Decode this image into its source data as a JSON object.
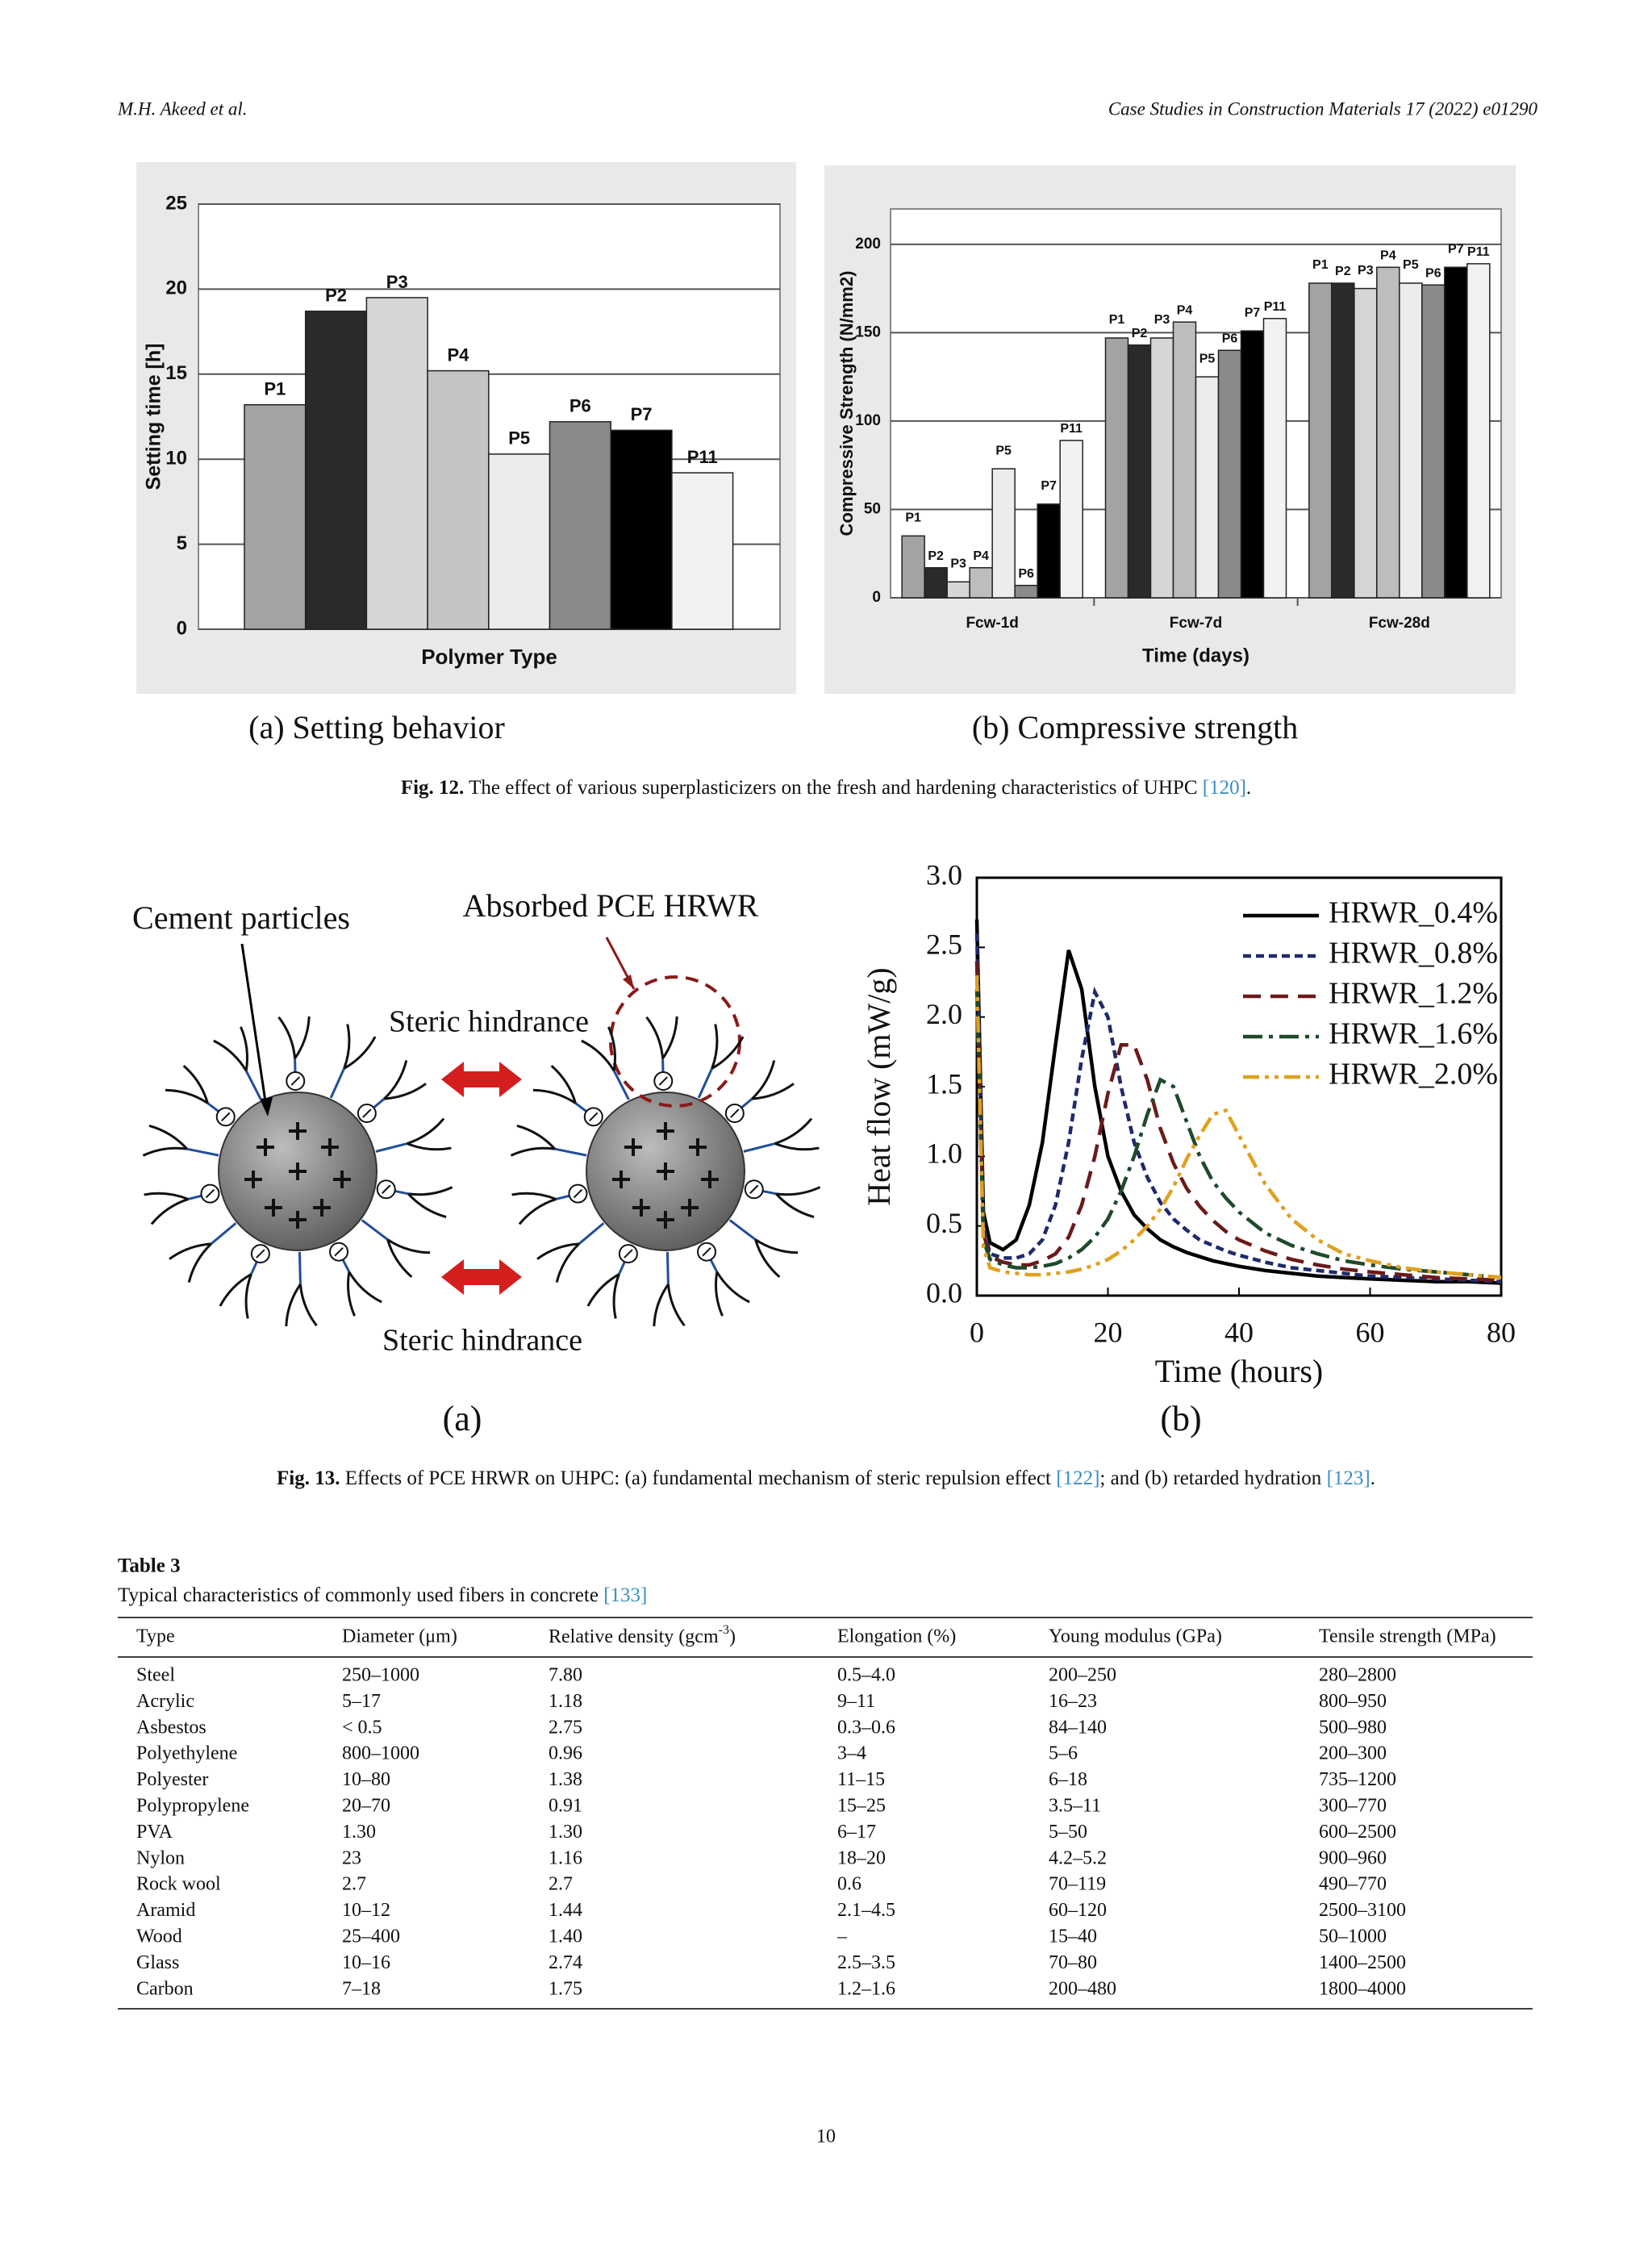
{
  "header": {
    "authors": "M.H. Akeed et al.",
    "journal": "Case Studies in Construction Materials 17 (2022) e01290"
  },
  "figure_12": {
    "panel_labels": [
      "(a) Setting behavior",
      "(b) Compressive strength"
    ],
    "caption": {
      "label": "Fig. 12.",
      "text": "The effect of various superplasticizers on the fresh and hardening characteristics of UHPC",
      "ref": "[120]",
      "tail": "."
    }
  },
  "figure_13": {
    "panel_labels": [
      "(a)",
      "(b)"
    ],
    "diagram": {
      "cement": "Cement particles",
      "pce": "Absorbed PCE HRWR",
      "steric_top": "Steric hindrance",
      "steric_bottom": "Steric hindrance"
    },
    "caption": {
      "label": "Fig. 13.",
      "text": "Effects of PCE HRWR on UHPC: (a) fundamental mechanism of steric repulsion effect",
      "ref": "[122]",
      "middle": "; and (b) retarded hydration",
      "ref2": "[123]",
      "tail": "."
    }
  },
  "chart_data": [
    {
      "type": "bar",
      "categories": [
        "P1",
        "P2",
        "P3",
        "P4",
        "P5",
        "P6",
        "P7",
        "P11"
      ],
      "values": [
        13.2,
        18.7,
        19.5,
        15.2,
        10.3,
        12.2,
        11.7,
        9.2
      ],
      "colors": [
        "#a3a3a3",
        "#2a2a2a",
        "#d6d6d6",
        "#c4c4c4",
        "#ececec",
        "#8a8a8a",
        "#000000",
        "#f2f2f2"
      ],
      "ylim": [
        0,
        25
      ],
      "yticks": [
        0,
        5,
        10,
        15,
        20,
        25
      ],
      "grid": true,
      "ylabel": "Setting time [h]",
      "xlabel": "Polymer Type"
    },
    {
      "type": "grouped_bar",
      "categories": [
        "Fcw-1d",
        "Fcw-7d",
        "Fcw-28d"
      ],
      "series": [
        {
          "name": "P1",
          "color": "#a3a3a3",
          "values": [
            35,
            147,
            178
          ]
        },
        {
          "name": "P2",
          "color": "#2a2a2a",
          "values": [
            17,
            143,
            178
          ]
        },
        {
          "name": "P3",
          "color": "#d6d6d6",
          "values": [
            9,
            147,
            175
          ]
        },
        {
          "name": "P4",
          "color": "#bdbdbd",
          "values": [
            17,
            156,
            187
          ]
        },
        {
          "name": "P5",
          "color": "#ececec",
          "values": [
            73,
            125,
            178
          ]
        },
        {
          "name": "P6",
          "color": "#8a8a8a",
          "values": [
            7,
            140,
            177
          ]
        },
        {
          "name": "P7",
          "color": "#000000",
          "values": [
            53,
            151,
            187
          ]
        },
        {
          "name": "P11",
          "color": "#f2f2f2",
          "values": [
            89,
            158,
            189
          ]
        }
      ],
      "ylim": [
        0,
        220
      ],
      "yticks": [
        0,
        50,
        100,
        150,
        200
      ],
      "grid": true,
      "ylabel": "Compressive Strength (N/mm2)",
      "xlabel": "Time (days)"
    },
    {
      "type": "line",
      "x": [
        0,
        1,
        2,
        4,
        6,
        8,
        10,
        12,
        14,
        16,
        18,
        20,
        22,
        24,
        26,
        28,
        30,
        32,
        34,
        36,
        38,
        40,
        44,
        48,
        52,
        56,
        60,
        65,
        70,
        75,
        80
      ],
      "series": [
        {
          "name": "HRWR_0.4%",
          "color": "#000000",
          "dash": "solid",
          "values": [
            2.7,
            0.6,
            0.38,
            0.33,
            0.4,
            0.65,
            1.1,
            1.8,
            2.48,
            2.2,
            1.5,
            1.0,
            0.75,
            0.58,
            0.48,
            0.4,
            0.35,
            0.31,
            0.28,
            0.25,
            0.23,
            0.21,
            0.18,
            0.16,
            0.14,
            0.13,
            0.12,
            0.11,
            0.1,
            0.1,
            0.09
          ]
        },
        {
          "name": "HRWR_0.8%",
          "color": "#1f2a6b",
          "dash": "short-dash",
          "values": [
            2.6,
            0.5,
            0.3,
            0.27,
            0.27,
            0.3,
            0.4,
            0.65,
            1.1,
            1.7,
            2.18,
            2.0,
            1.5,
            1.1,
            0.85,
            0.67,
            0.55,
            0.47,
            0.4,
            0.36,
            0.32,
            0.29,
            0.24,
            0.2,
            0.18,
            0.16,
            0.14,
            0.13,
            0.12,
            0.11,
            0.1
          ]
        },
        {
          "name": "HRWR_1.2%",
          "color": "#6b1a1a",
          "dash": "dash",
          "values": [
            2.4,
            0.45,
            0.28,
            0.24,
            0.22,
            0.22,
            0.25,
            0.3,
            0.42,
            0.65,
            1.0,
            1.45,
            1.8,
            1.8,
            1.55,
            1.2,
            0.95,
            0.77,
            0.64,
            0.54,
            0.46,
            0.4,
            0.32,
            0.26,
            0.22,
            0.19,
            0.17,
            0.15,
            0.13,
            0.12,
            0.11
          ]
        },
        {
          "name": "HRWR_1.6%",
          "color": "#1e4a2a",
          "dash": "dash-dot",
          "values": [
            2.2,
            0.4,
            0.26,
            0.22,
            0.2,
            0.2,
            0.21,
            0.23,
            0.27,
            0.33,
            0.42,
            0.55,
            0.75,
            1.0,
            1.3,
            1.55,
            1.5,
            1.25,
            1.0,
            0.82,
            0.7,
            0.6,
            0.45,
            0.36,
            0.3,
            0.25,
            0.22,
            0.19,
            0.17,
            0.15,
            0.13
          ]
        },
        {
          "name": "HRWR_2.0%",
          "color": "#e0a020",
          "dash": "dash-dot-dot",
          "values": [
            2.3,
            0.35,
            0.2,
            0.17,
            0.16,
            0.15,
            0.15,
            0.16,
            0.17,
            0.19,
            0.22,
            0.26,
            0.32,
            0.4,
            0.5,
            0.62,
            0.78,
            0.98,
            1.15,
            1.3,
            1.33,
            1.15,
            0.8,
            0.55,
            0.4,
            0.3,
            0.25,
            0.2,
            0.17,
            0.15,
            0.13
          ]
        }
      ],
      "xlim": [
        0,
        80
      ],
      "xticks": [
        0,
        20,
        40,
        60,
        80
      ],
      "ylim": [
        0,
        3
      ],
      "yticks": [
        {
          "value": 0,
          "label": "0.0"
        },
        0.5,
        {
          "value": 1,
          "label": "1.0"
        },
        1.5,
        {
          "value": 2,
          "label": "2.0"
        },
        2.5,
        {
          "value": 3,
          "label": "3.0"
        }
      ],
      "xlabel": "Time (hours)",
      "ylabel": "Heat flow (mW/g)",
      "legend": "upper right"
    }
  ],
  "table": {
    "title": "Table 3",
    "caption": "Typical characteristics of commonly used fibers in concrete",
    "ref": "[133]",
    "columns": [
      "Type",
      "Diameter (μm)",
      {
        "text": "Relative density (gcm",
        "sup": "-3",
        "close": ")"
      },
      "Elongation (%)",
      "Young modulus (GPa)",
      "Tensile strength (MPa)"
    ],
    "rows": [
      [
        "Steel",
        "250–1000",
        "7.80",
        "0.5–4.0",
        "200–250",
        "280–2800"
      ],
      [
        "Acrylic",
        "5–17",
        "1.18",
        "9–11",
        "16–23",
        "800–950"
      ],
      [
        "Asbestos",
        "< 0.5",
        "2.75",
        "0.3–0.6",
        "84–140",
        "500–980"
      ],
      [
        "Polyethylene",
        "800–1000",
        "0.96",
        "3–4",
        "5–6",
        "200–300"
      ],
      [
        "Polyester",
        "10–80",
        "1.38",
        "11–15",
        "6–18",
        "735–1200"
      ],
      [
        "Polypropylene",
        "20–70",
        "0.91",
        "15–25",
        "3.5–11",
        "300–770"
      ],
      [
        "PVA",
        "1.30",
        "1.30",
        "6–17",
        "5–50",
        "600–2500"
      ],
      [
        "Nylon",
        "23",
        "1.16",
        "18–20",
        "4.2–5.2",
        "900–960"
      ],
      [
        "Rock wool",
        "2.7",
        "2.7",
        "0.6",
        "70–119",
        "490–770"
      ],
      [
        "Aramid",
        "10–12",
        "1.44",
        "2.1–4.5",
        "60–120",
        "2500–3100"
      ],
      [
        "Wood",
        "25–400",
        "1.40",
        "–",
        "15–40",
        "50–1000"
      ],
      [
        "Glass",
        "10–16",
        "2.74",
        "2.5–3.5",
        "70–80",
        "1400–2500"
      ],
      [
        "Carbon",
        "7–18",
        "1.75",
        "1.2–1.6",
        "200–480",
        "1800–4000"
      ]
    ]
  },
  "page_number": "10"
}
